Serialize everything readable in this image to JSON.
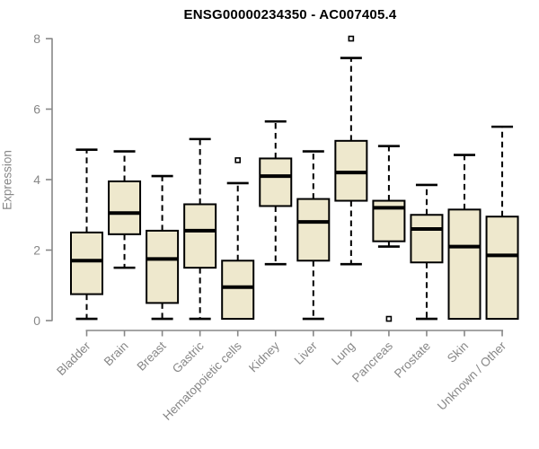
{
  "chart_data": {
    "type": "boxplot",
    "title": "ENSG00000234350 - AC007405.4",
    "xlabel": "",
    "ylabel": "Expression",
    "ylim": [
      0,
      8
    ],
    "yticks": [
      0,
      2,
      4,
      6,
      8
    ],
    "grid": false,
    "legend": "none",
    "categories": [
      "Bladder",
      "Brain",
      "Breast",
      "Gastric",
      "Hematopoietic cells",
      "Kidney",
      "Liver",
      "Lung",
      "Pancreas",
      "Prostate",
      "Skin",
      "Unknown / Other"
    ],
    "series": [
      {
        "category": "Bladder",
        "whisker_low": 0.05,
        "q1": 0.75,
        "median": 1.7,
        "q3": 2.5,
        "whisker_high": 4.85,
        "outliers": []
      },
      {
        "category": "Brain",
        "whisker_low": 1.5,
        "q1": 2.45,
        "median": 3.05,
        "q3": 3.95,
        "whisker_high": 4.8,
        "outliers": []
      },
      {
        "category": "Breast",
        "whisker_low": 0.05,
        "q1": 0.5,
        "median": 1.75,
        "q3": 2.55,
        "whisker_high": 4.1,
        "outliers": []
      },
      {
        "category": "Gastric",
        "whisker_low": 0.05,
        "q1": 1.5,
        "median": 2.55,
        "q3": 3.3,
        "whisker_high": 5.15,
        "outliers": []
      },
      {
        "category": "Hematopoietic cells",
        "whisker_low": 0.05,
        "q1": 0.05,
        "median": 0.95,
        "q3": 1.7,
        "whisker_high": 3.9,
        "outliers": [
          4.55
        ]
      },
      {
        "category": "Kidney",
        "whisker_low": 1.6,
        "q1": 3.25,
        "median": 4.1,
        "q3": 4.6,
        "whisker_high": 5.65,
        "outliers": []
      },
      {
        "category": "Liver",
        "whisker_low": 0.05,
        "q1": 1.7,
        "median": 2.8,
        "q3": 3.45,
        "whisker_high": 4.8,
        "outliers": []
      },
      {
        "category": "Lung",
        "whisker_low": 1.6,
        "q1": 3.4,
        "median": 4.2,
        "q3": 5.1,
        "whisker_high": 7.45,
        "outliers": [
          8.0
        ]
      },
      {
        "category": "Pancreas",
        "whisker_low": 2.1,
        "q1": 2.25,
        "median": 3.2,
        "q3": 3.4,
        "whisker_high": 4.95,
        "outliers": [
          0.05
        ]
      },
      {
        "category": "Prostate",
        "whisker_low": 0.05,
        "q1": 1.65,
        "median": 2.6,
        "q3": 3.0,
        "whisker_high": 3.85,
        "outliers": []
      },
      {
        "category": "Skin",
        "whisker_low": 0.05,
        "q1": 0.05,
        "median": 2.1,
        "q3": 3.15,
        "whisker_high": 4.7,
        "outliers": []
      },
      {
        "category": "Unknown / Other",
        "whisker_low": 0.05,
        "q1": 0.05,
        "median": 1.85,
        "q3": 2.95,
        "whisker_high": 5.5,
        "outliers": []
      }
    ],
    "colors": {
      "box_fill": "#EEE8CD",
      "box_border": "#000000",
      "median_line": "#000000",
      "whisker": "#000000",
      "axis": "#878787",
      "tick_label": "#878787",
      "title": "#000000",
      "background": "#ffffff"
    }
  }
}
